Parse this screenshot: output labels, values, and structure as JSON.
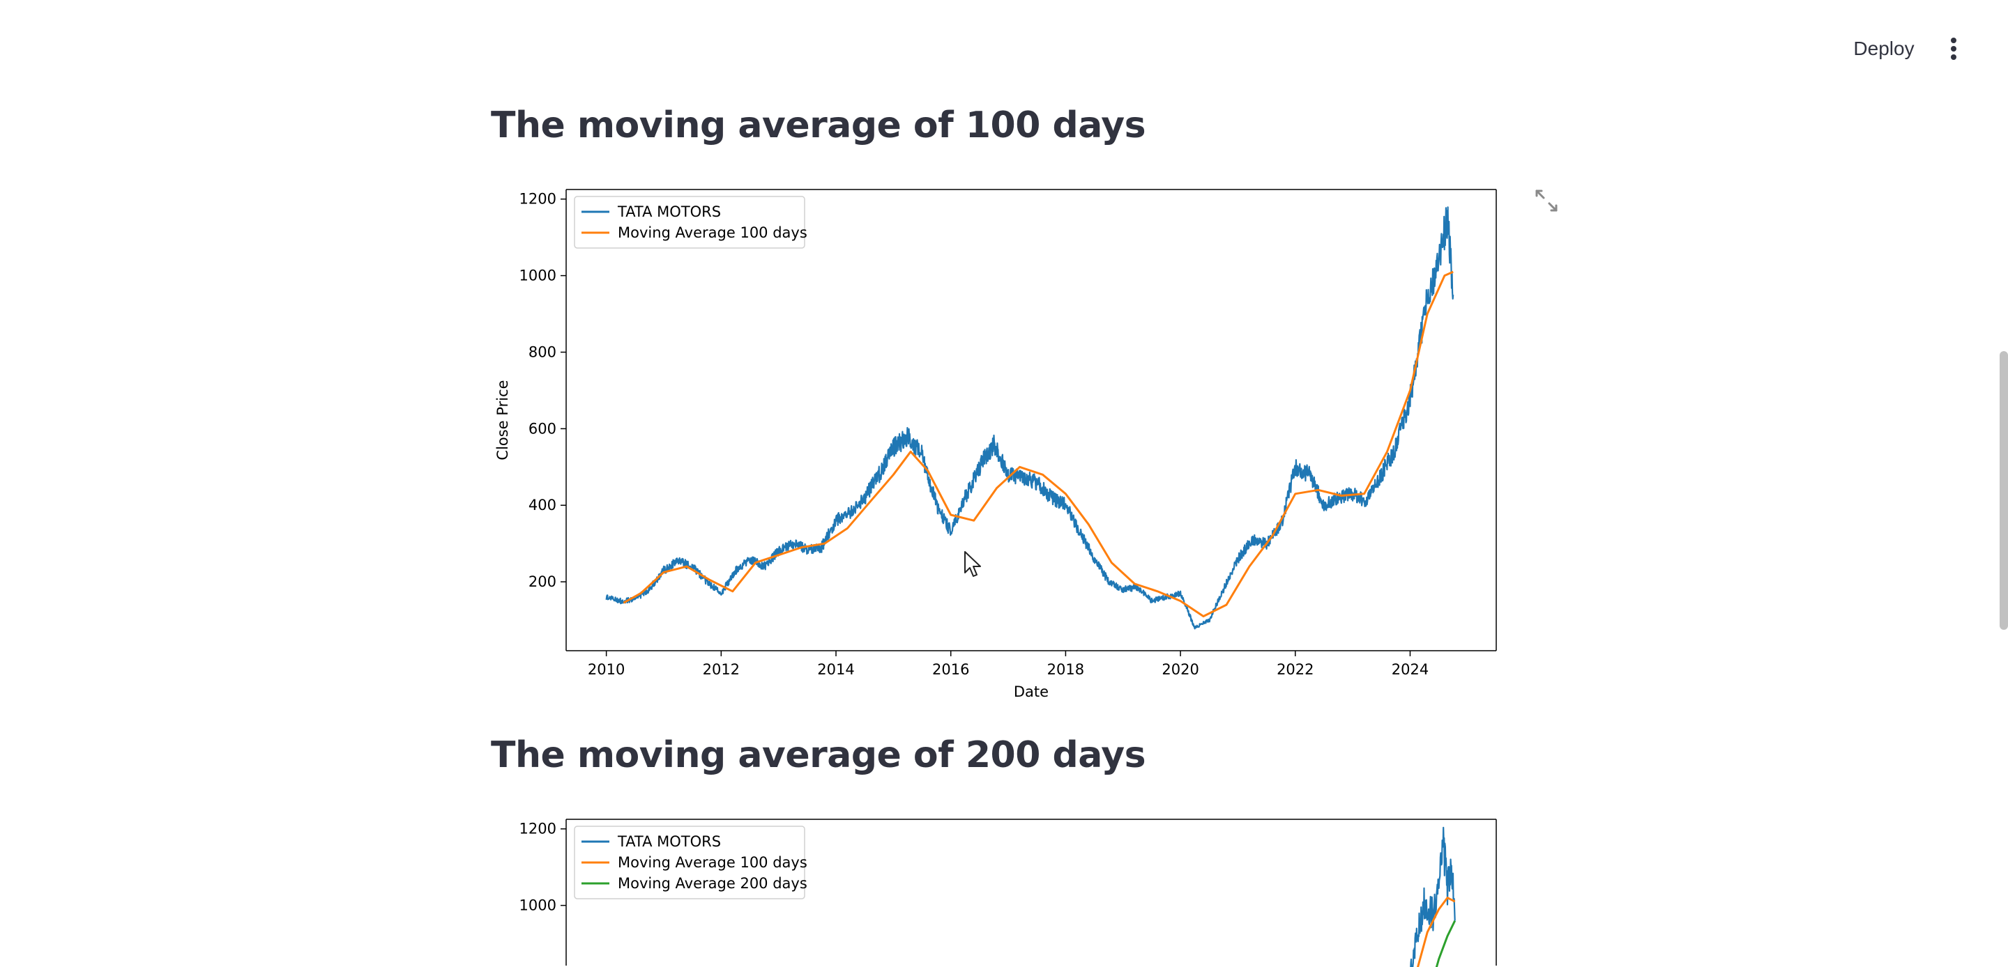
{
  "header": {
    "deploy_label": "Deploy",
    "menu_icon": "kebab-menu-icon"
  },
  "sections": [
    {
      "title": "The moving average of 100 days"
    },
    {
      "title": "The moving average of 200 days"
    }
  ],
  "colors": {
    "tata": "#1f77b4",
    "ma100": "#ff7f0e",
    "ma200": "#2ca02c"
  },
  "chart_data": [
    {
      "type": "line",
      "title": "",
      "xlabel": "Date",
      "ylabel": "Close Price",
      "xlim": [
        2009.3,
        2025.5
      ],
      "ylim": [
        20,
        1225
      ],
      "xticks": [
        "2010",
        "2012",
        "2014",
        "2016",
        "2018",
        "2020",
        "2022",
        "2024"
      ],
      "yticks": [
        "200",
        "400",
        "600",
        "800",
        "1000",
        "1200"
      ],
      "legend": [
        "TATA MOTORS",
        "Moving Average 100 days"
      ],
      "legend_position": "upper-left",
      "series": [
        {
          "name": "TATA MOTORS",
          "x": [
            2010.0,
            2010.25,
            2010.5,
            2010.75,
            2011.0,
            2011.25,
            2011.5,
            2011.75,
            2012.0,
            2012.25,
            2012.5,
            2012.75,
            2013.0,
            2013.25,
            2013.5,
            2013.75,
            2014.0,
            2014.25,
            2014.5,
            2014.75,
            2015.0,
            2015.25,
            2015.5,
            2015.75,
            2016.0,
            2016.25,
            2016.5,
            2016.75,
            2017.0,
            2017.25,
            2017.5,
            2017.75,
            2018.0,
            2018.25,
            2018.5,
            2018.75,
            2019.0,
            2019.25,
            2019.5,
            2019.75,
            2020.0,
            2020.25,
            2020.5,
            2020.75,
            2021.0,
            2021.25,
            2021.5,
            2021.75,
            2022.0,
            2022.25,
            2022.5,
            2022.75,
            2023.0,
            2023.25,
            2023.5,
            2023.75,
            2024.0,
            2024.25,
            2024.5,
            2024.65,
            2024.75
          ],
          "values": [
            160,
            150,
            155,
            180,
            230,
            255,
            240,
            200,
            170,
            230,
            260,
            240,
            280,
            300,
            285,
            290,
            360,
            380,
            420,
            480,
            550,
            580,
            530,
            400,
            330,
            420,
            500,
            560,
            480,
            470,
            460,
            420,
            400,
            330,
            260,
            200,
            180,
            185,
            150,
            160,
            170,
            80,
            100,
            180,
            260,
            310,
            300,
            350,
            500,
            480,
            400,
            420,
            430,
            410,
            480,
            550,
            680,
            900,
            1050,
            1150,
            950
          ],
          "style": "jagged"
        },
        {
          "name": "Moving Average 100 days",
          "x": [
            2010.3,
            2010.6,
            2011.0,
            2011.4,
            2011.8,
            2012.2,
            2012.6,
            2013.0,
            2013.4,
            2013.8,
            2014.2,
            2014.6,
            2015.0,
            2015.3,
            2015.6,
            2016.0,
            2016.4,
            2016.8,
            2017.2,
            2017.6,
            2018.0,
            2018.4,
            2018.8,
            2019.2,
            2019.6,
            2020.0,
            2020.4,
            2020.8,
            2021.2,
            2021.6,
            2022.0,
            2022.4,
            2022.8,
            2023.2,
            2023.6,
            2024.0,
            2024.3,
            2024.6,
            2024.75
          ],
          "values": [
            145,
            170,
            225,
            240,
            205,
            175,
            250,
            270,
            290,
            300,
            340,
            410,
            480,
            540,
            490,
            375,
            360,
            445,
            500,
            480,
            430,
            350,
            250,
            195,
            175,
            150,
            110,
            140,
            240,
            320,
            430,
            440,
            425,
            430,
            540,
            700,
            900,
            1000,
            1010
          ]
        }
      ]
    },
    {
      "type": "line",
      "title": "",
      "xlabel": "",
      "ylabel": "",
      "xlim": [
        2009.3,
        2025.5
      ],
      "ylim": [
        20,
        1225
      ],
      "yticks": [
        "1000",
        "1200"
      ],
      "legend": [
        "TATA MOTORS",
        "Moving Average 100 days",
        "Moving Average 200 days"
      ],
      "legend_position": "upper-left",
      "series": [
        {
          "name": "TATA MOTORS",
          "x": [
            2024.0,
            2024.1,
            2024.25,
            2024.4,
            2024.5,
            2024.58,
            2024.65,
            2024.72,
            2024.78
          ],
          "values": [
            810,
            900,
            1010,
            980,
            1050,
            1160,
            1040,
            1120,
            960
          ],
          "style": "jagged"
        },
        {
          "name": "Moving Average 100 days",
          "x": [
            2024.1,
            2024.3,
            2024.5,
            2024.65,
            2024.78
          ],
          "values": [
            820,
            930,
            990,
            1020,
            1010
          ]
        },
        {
          "name": "Moving Average 200 days",
          "x": [
            2024.35,
            2024.5,
            2024.65,
            2024.78
          ],
          "values": [
            780,
            860,
            920,
            960
          ]
        }
      ]
    }
  ]
}
